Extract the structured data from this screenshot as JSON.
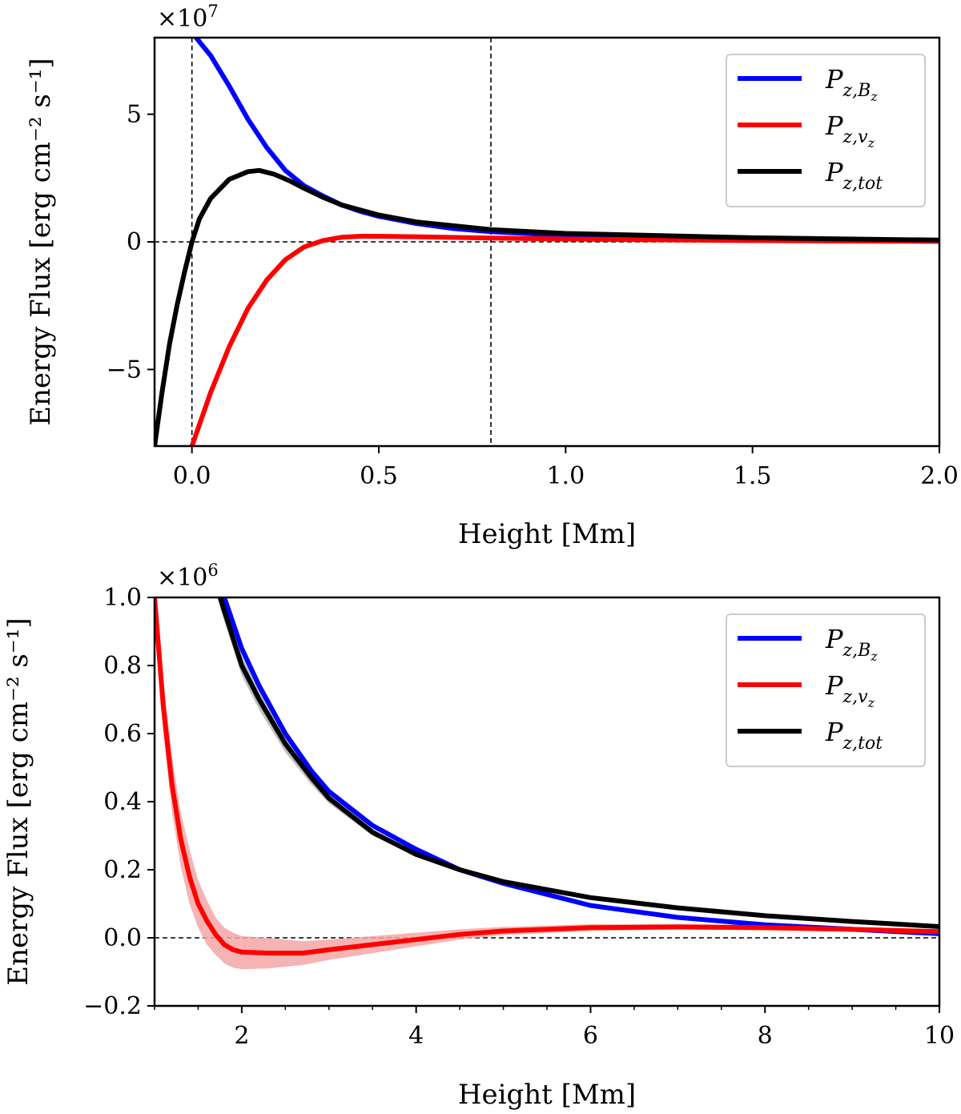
{
  "chart_data": [
    {
      "type": "line",
      "xlabel": "Height [Mm]",
      "ylabel": "Energy Flux [erg cm⁻² s⁻¹]",
      "y_offset_text": "×10",
      "y_offset_exp": "7",
      "xlim": [
        -0.1,
        2.0
      ],
      "ylim": [
        -8,
        8
      ],
      "y_scale": 10000000,
      "x_ticks": [
        0.0,
        0.5,
        1.0,
        1.5,
        2.0
      ],
      "x_tick_labels": [
        "0.0",
        "0.5",
        "1.0",
        "1.5",
        "2.0"
      ],
      "y_ticks": [
        -5,
        0,
        5
      ],
      "y_tick_labels": [
        "−5",
        "0",
        "5"
      ],
      "reference_lines": {
        "horizontal": [
          0
        ],
        "vertical": [
          0.0,
          0.8
        ]
      },
      "legend_position": "upper right",
      "series": [
        {
          "name": "P_{z,B_z}",
          "legend_main": "P",
          "legend_sub": "z,B",
          "legend_subsub": "z",
          "color": "#0000ff",
          "x": [
            0.0,
            0.05,
            0.1,
            0.15,
            0.2,
            0.25,
            0.3,
            0.35,
            0.4,
            0.45,
            0.5,
            0.6,
            0.7,
            0.8,
            1.0,
            1.2,
            1.5,
            2.0
          ],
          "y": [
            8.2,
            7.3,
            6.1,
            4.8,
            3.7,
            2.8,
            2.2,
            1.8,
            1.45,
            1.2,
            1.0,
            0.72,
            0.52,
            0.4,
            0.25,
            0.17,
            0.1,
            0.05
          ]
        },
        {
          "name": "P_{z,v_z}",
          "legend_main": "P",
          "legend_sub": "z,v",
          "legend_subsub": "z",
          "color": "#ff0000",
          "x": [
            0.0,
            0.05,
            0.1,
            0.15,
            0.2,
            0.25,
            0.3,
            0.35,
            0.4,
            0.45,
            0.5,
            0.6,
            0.8,
            1.0,
            1.5,
            2.0
          ],
          "y": [
            -8.0,
            -5.9,
            -4.1,
            -2.6,
            -1.5,
            -0.7,
            -0.2,
            0.05,
            0.18,
            0.22,
            0.22,
            0.2,
            0.15,
            0.11,
            0.05,
            0.02
          ]
        },
        {
          "name": "P_{z,tot}",
          "legend_main": "P",
          "legend_sub": "z,tot",
          "legend_subsub": "",
          "color": "#000000",
          "x": [
            -0.1,
            -0.08,
            -0.06,
            -0.04,
            -0.02,
            0.0,
            0.02,
            0.05,
            0.1,
            0.15,
            0.18,
            0.22,
            0.26,
            0.3,
            0.35,
            0.4,
            0.5,
            0.6,
            0.8,
            1.0,
            1.5,
            2.0
          ],
          "y": [
            -8.0,
            -5.9,
            -4.0,
            -2.5,
            -1.2,
            0.0,
            0.9,
            1.7,
            2.45,
            2.75,
            2.8,
            2.65,
            2.4,
            2.1,
            1.75,
            1.45,
            1.05,
            0.78,
            0.48,
            0.33,
            0.16,
            0.07
          ]
        }
      ]
    },
    {
      "type": "line",
      "xlabel": "Height [Mm]",
      "ylabel": "Energy Flux [erg cm⁻² s⁻¹]",
      "y_offset_text": "×10",
      "y_offset_exp": "6",
      "xlim": [
        1,
        10
      ],
      "ylim": [
        -0.2,
        1.0
      ],
      "y_scale": 1000000,
      "x_ticks": [
        2,
        4,
        6,
        8,
        10
      ],
      "x_tick_labels": [
        "2",
        "4",
        "6",
        "8",
        "10"
      ],
      "x_minor_ticks": [
        1.0,
        1.5,
        2.5,
        3.0,
        3.5,
        4.5,
        5.0,
        5.5,
        6.5,
        7.0,
        7.5,
        8.5,
        9.0,
        9.5
      ],
      "y_ticks": [
        -0.2,
        0.0,
        0.2,
        0.4,
        0.6,
        0.8,
        1.0
      ],
      "y_tick_labels": [
        "−0.2",
        "0.0",
        "0.2",
        "0.4",
        "0.6",
        "0.8",
        "1.0"
      ],
      "reference_lines": {
        "horizontal": [
          0
        ]
      },
      "legend_position": "upper right",
      "series": [
        {
          "name": "P_{z,B_z}",
          "legend_main": "P",
          "legend_sub": "z,B",
          "legend_subsub": "z",
          "color": "#0000ff",
          "x": [
            1.8,
            2.0,
            2.2,
            2.5,
            2.8,
            3.0,
            3.5,
            4.0,
            4.5,
            5.0,
            6.0,
            7.0,
            8.0,
            9.0,
            10.0
          ],
          "y": [
            1.0,
            0.85,
            0.74,
            0.6,
            0.49,
            0.43,
            0.33,
            0.26,
            0.2,
            0.16,
            0.095,
            0.06,
            0.038,
            0.025,
            0.012
          ]
        },
        {
          "name": "P_{z,v_z}",
          "legend_main": "P",
          "legend_sub": "z,v",
          "legend_subsub": "z",
          "color": "#ff0000",
          "band_color": "#f4a6a6",
          "x": [
            1.0,
            1.1,
            1.2,
            1.3,
            1.4,
            1.5,
            1.6,
            1.7,
            1.8,
            1.9,
            2.0,
            2.3,
            2.7,
            3.0,
            3.5,
            4.0,
            4.5,
            5.0,
            6.0,
            7.0,
            8.0,
            9.0,
            10.0
          ],
          "y": [
            1.0,
            0.68,
            0.45,
            0.29,
            0.18,
            0.1,
            0.05,
            0.01,
            -0.02,
            -0.035,
            -0.042,
            -0.045,
            -0.045,
            -0.035,
            -0.02,
            -0.005,
            0.01,
            0.02,
            0.03,
            0.032,
            0.03,
            0.025,
            0.018
          ],
          "band_low": [
            1.0,
            0.6,
            0.37,
            0.21,
            0.1,
            0.03,
            -0.02,
            -0.05,
            -0.075,
            -0.088,
            -0.092,
            -0.09,
            -0.08,
            -0.065,
            -0.045,
            -0.025,
            -0.005,
            0.008,
            0.02,
            0.024,
            0.022,
            0.018,
            0.012
          ],
          "band_high": [
            1.0,
            0.76,
            0.53,
            0.37,
            0.26,
            0.17,
            0.11,
            0.06,
            0.03,
            0.015,
            0.005,
            0.0,
            -0.01,
            -0.005,
            0.005,
            0.015,
            0.025,
            0.032,
            0.04,
            0.04,
            0.038,
            0.032,
            0.024
          ]
        },
        {
          "name": "P_{z,tot}",
          "legend_main": "P",
          "legend_sub": "z,tot",
          "legend_subsub": "",
          "color": "#000000",
          "band_color": "#b3b3b3",
          "x": [
            1.75,
            2.0,
            2.2,
            2.5,
            2.8,
            3.0,
            3.5,
            4.0,
            4.5,
            5.0,
            6.0,
            7.0,
            8.0,
            9.0,
            10.0
          ],
          "y": [
            1.0,
            0.8,
            0.7,
            0.57,
            0.47,
            0.41,
            0.31,
            0.245,
            0.2,
            0.165,
            0.118,
            0.088,
            0.065,
            0.048,
            0.033
          ],
          "band_low": [
            0.97,
            0.77,
            0.67,
            0.545,
            0.45,
            0.395,
            0.3,
            0.24,
            0.197,
            0.162,
            0.116,
            0.086,
            0.063,
            0.046,
            0.031
          ],
          "band_high": [
            1.0,
            0.83,
            0.73,
            0.595,
            0.49,
            0.425,
            0.32,
            0.25,
            0.204,
            0.168,
            0.12,
            0.09,
            0.067,
            0.05,
            0.035
          ]
        }
      ]
    }
  ]
}
